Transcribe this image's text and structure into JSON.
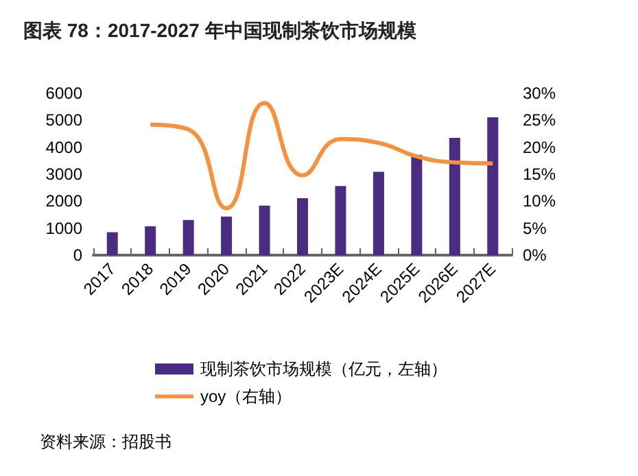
{
  "chart_data": {
    "type": "bar",
    "title": "图表 78：2017-2027 年中国现制茶饮市场规模",
    "categories": [
      "2017",
      "2018",
      "2019",
      "2020",
      "2021",
      "2022",
      "2023E",
      "2024E",
      "2025E",
      "2026E",
      "2027E"
    ],
    "series": [
      {
        "name": "现制茶饮市场规模（亿元，左轴）",
        "color": "#4b2c83",
        "values": [
          850,
          1070,
          1300,
          1430,
          1840,
          2110,
          2560,
          3090,
          3720,
          4350,
          5110
        ]
      },
      {
        "name": "yoy（右轴）",
        "type": "line",
        "axis": "y2",
        "color": "#f7913d",
        "values": [
          null,
          24.2,
          23.3,
          8.7,
          28.2,
          14.8,
          21.5,
          20.8,
          18.3,
          17.2,
          17.0
        ]
      }
    ],
    "ylim": [
      0,
      6000
    ],
    "yticks": [
      0,
      1000,
      2000,
      3000,
      4000,
      5000,
      6000
    ],
    "y2lim": [
      0,
      30
    ],
    "y2ticks": [
      {
        "value": 0,
        "label": "0%"
      },
      {
        "value": 5,
        "label": "5%"
      },
      {
        "value": 10,
        "label": "10%"
      },
      {
        "value": 15,
        "label": "15%"
      },
      {
        "value": 20,
        "label": "20%"
      },
      {
        "value": 25,
        "label": "25%"
      },
      {
        "value": 30,
        "label": "30%"
      }
    ],
    "grid": false,
    "legend": "bottom",
    "marker": "none",
    "annotations": [
      "资料来源：招股书"
    ]
  }
}
